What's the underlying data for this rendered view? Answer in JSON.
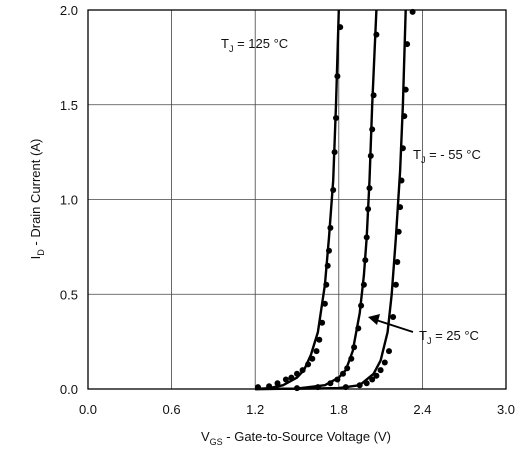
{
  "chart_data": {
    "type": "line",
    "xlabel_main": "V",
    "xlabel_sub": "GS",
    "xlabel_rest": " - Gate-to-Source Voltage (V)",
    "ylabel_main": "I",
    "ylabel_sub": "D",
    "ylabel_rest": " - Drain Current (A)",
    "xlim": [
      0.0,
      3.0
    ],
    "ylim": [
      0.0,
      2.0
    ],
    "xticks": [
      "0.0",
      "0.6",
      "1.2",
      "1.8",
      "2.4",
      "3.0"
    ],
    "yticks": [
      "0.0",
      "0.5",
      "1.0",
      "1.5",
      "2.0"
    ],
    "grid": true,
    "series": [
      {
        "name": "TJ = 125 °C",
        "line": [
          [
            1.2,
            0.0
          ],
          [
            1.3,
            0.004
          ],
          [
            1.4,
            0.02
          ],
          [
            1.5,
            0.06
          ],
          [
            1.55,
            0.1
          ],
          [
            1.6,
            0.18
          ],
          [
            1.65,
            0.3
          ],
          [
            1.7,
            0.55
          ],
          [
            1.73,
            0.8
          ],
          [
            1.76,
            1.1
          ],
          [
            1.78,
            1.5
          ],
          [
            1.8,
            2.0
          ]
        ],
        "points": [
          [
            1.22,
            0.01
          ],
          [
            1.3,
            0.015
          ],
          [
            1.36,
            0.03
          ],
          [
            1.42,
            0.05
          ],
          [
            1.46,
            0.06
          ],
          [
            1.5,
            0.08
          ],
          [
            1.54,
            0.1
          ],
          [
            1.58,
            0.13
          ],
          [
            1.61,
            0.16
          ],
          [
            1.64,
            0.2
          ],
          [
            1.66,
            0.26
          ],
          [
            1.68,
            0.35
          ],
          [
            1.7,
            0.45
          ],
          [
            1.71,
            0.55
          ],
          [
            1.72,
            0.65
          ],
          [
            1.73,
            0.73
          ],
          [
            1.74,
            0.85
          ],
          [
            1.76,
            1.05
          ],
          [
            1.77,
            1.25
          ],
          [
            1.78,
            1.43
          ],
          [
            1.79,
            1.65
          ],
          [
            1.81,
            1.91
          ]
        ]
      },
      {
        "name": "TJ = - 55 °C",
        "line": [
          [
            1.2,
            0.0
          ],
          [
            1.6,
            0.002
          ],
          [
            1.8,
            0.005
          ],
          [
            1.95,
            0.02
          ],
          [
            2.05,
            0.08
          ],
          [
            2.1,
            0.15
          ],
          [
            2.15,
            0.3
          ],
          [
            2.18,
            0.5
          ],
          [
            2.21,
            0.8
          ],
          [
            2.24,
            1.15
          ],
          [
            2.26,
            1.5
          ],
          [
            2.28,
            2.0
          ]
        ],
        "points": [
          [
            1.85,
            0.01
          ],
          [
            1.95,
            0.02
          ],
          [
            2.0,
            0.03
          ],
          [
            2.04,
            0.05
          ],
          [
            2.07,
            0.07
          ],
          [
            2.1,
            0.1
          ],
          [
            2.13,
            0.14
          ],
          [
            2.16,
            0.2
          ],
          [
            2.19,
            0.38
          ],
          [
            2.21,
            0.55
          ],
          [
            2.22,
            0.67
          ],
          [
            2.23,
            0.83
          ],
          [
            2.24,
            0.96
          ],
          [
            2.25,
            1.1
          ],
          [
            2.26,
            1.27
          ],
          [
            2.27,
            1.44
          ],
          [
            2.28,
            1.58
          ],
          [
            2.29,
            1.82
          ],
          [
            2.33,
            1.99
          ]
        ]
      },
      {
        "name": "TJ = 25 °C",
        "line": [
          [
            1.2,
            0.0
          ],
          [
            1.5,
            0.002
          ],
          [
            1.7,
            0.02
          ],
          [
            1.8,
            0.06
          ],
          [
            1.85,
            0.1
          ],
          [
            1.9,
            0.2
          ],
          [
            1.95,
            0.4
          ],
          [
            1.98,
            0.6
          ],
          [
            2.0,
            0.8
          ],
          [
            2.02,
            1.1
          ],
          [
            2.04,
            1.5
          ],
          [
            2.07,
            2.0
          ]
        ],
        "points": [
          [
            1.5,
            0.005
          ],
          [
            1.65,
            0.01
          ],
          [
            1.74,
            0.03
          ],
          [
            1.79,
            0.05
          ],
          [
            1.83,
            0.08
          ],
          [
            1.86,
            0.11
          ],
          [
            1.89,
            0.16
          ],
          [
            1.91,
            0.22
          ],
          [
            1.94,
            0.32
          ],
          [
            1.96,
            0.44
          ],
          [
            1.98,
            0.55
          ],
          [
            1.99,
            0.68
          ],
          [
            2.0,
            0.8
          ],
          [
            2.01,
            0.95
          ],
          [
            2.02,
            1.06
          ],
          [
            2.03,
            1.23
          ],
          [
            2.04,
            1.37
          ],
          [
            2.05,
            1.55
          ],
          [
            2.07,
            1.87
          ]
        ]
      }
    ],
    "annotations": {
      "t125": {
        "main": "T",
        "sub": "J",
        "rest": " = 125 °C"
      },
      "tm55": {
        "main": "T",
        "sub": "J",
        "rest": " = - 55 °C"
      },
      "t25": {
        "main": "T",
        "sub": "J",
        "rest": " = 25 °C"
      }
    }
  }
}
